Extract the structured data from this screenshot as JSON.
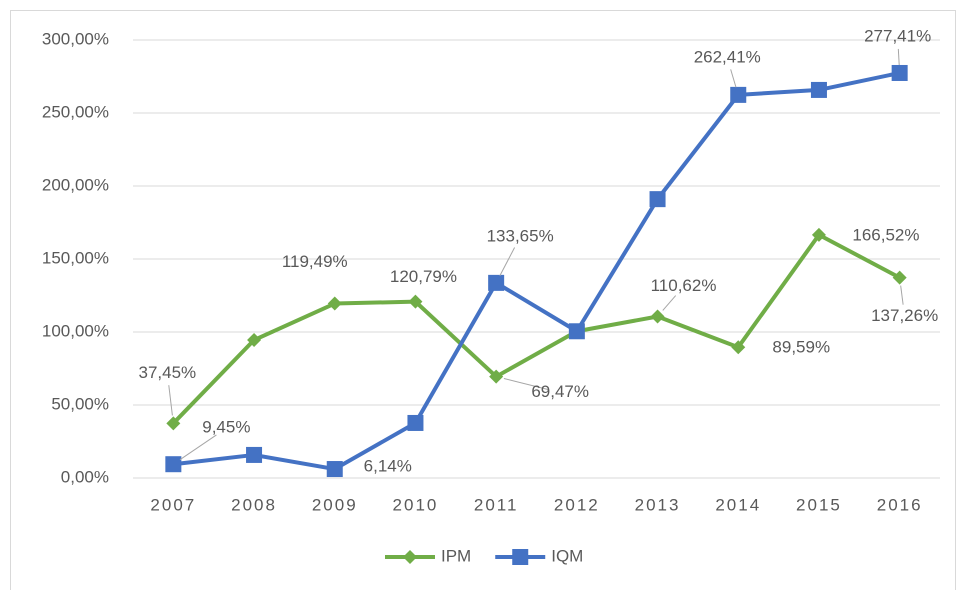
{
  "chart_data": {
    "type": "line",
    "categories": [
      "2007",
      "2008",
      "2009",
      "2010",
      "2011",
      "2012",
      "2013",
      "2014",
      "2015",
      "2016"
    ],
    "series": [
      {
        "name": "IPM",
        "color": "#70ad47",
        "marker": "diamond",
        "values": [
          37.45,
          94.5,
          119.49,
          120.79,
          69.47,
          100.5,
          110.62,
          89.59,
          166.52,
          137.26
        ],
        "value_labels": [
          "37,45%",
          null,
          "119,49%",
          "120,79%",
          "69,47%",
          null,
          "110,62%",
          "89,59%",
          "166,52%",
          "137,26%"
        ]
      },
      {
        "name": "IQM",
        "color": "#4472c4",
        "marker": "square",
        "values": [
          9.45,
          15.8,
          6.14,
          37.7,
          133.65,
          100.5,
          191,
          262.41,
          265.8,
          277.41
        ],
        "value_labels": [
          "9,45%",
          null,
          "6,14%",
          null,
          "133,65%",
          null,
          null,
          "262,41%",
          null,
          "277,41%"
        ]
      }
    ],
    "ylim": [
      0,
      300
    ],
    "yticks": [
      {
        "value": 0,
        "label": "0,00%"
      },
      {
        "value": 50,
        "label": "50,00%"
      },
      {
        "value": 100,
        "label": "100,00%"
      },
      {
        "value": 150,
        "label": "150,00%"
      },
      {
        "value": 200,
        "label": "200,00%"
      },
      {
        "value": 250,
        "label": "250,00%"
      },
      {
        "value": 300,
        "label": "300,00%"
      }
    ],
    "grid": true,
    "legend": "bottom"
  }
}
